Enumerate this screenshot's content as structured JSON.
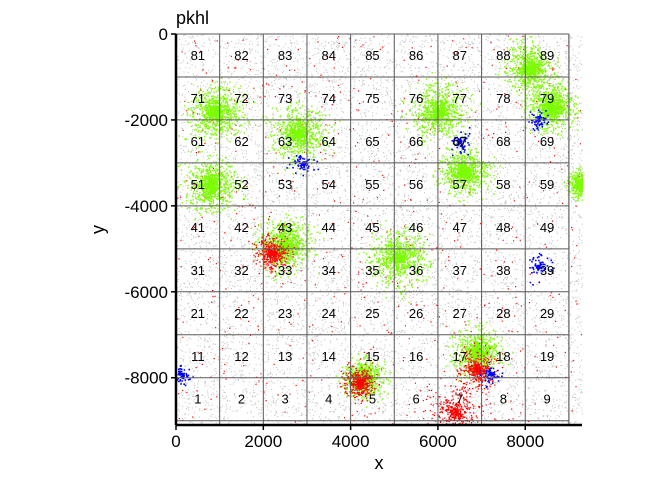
{
  "chart_data": {
    "type": "scatter",
    "title": "pkhl",
    "xlabel": "x",
    "ylabel": "y",
    "xlim": [
      0,
      9300
    ],
    "ylim": [
      -9100,
      0
    ],
    "x_ticks": [
      0,
      2000,
      4000,
      6000,
      8000
    ],
    "x_tick_labels": [
      "0",
      "2000",
      "4000",
      "6000",
      "8000"
    ],
    "y_ticks": [
      0,
      -2000,
      -4000,
      -6000,
      -8000
    ],
    "y_tick_labels": [
      "0",
      "-2000",
      "-4000",
      "-6000",
      "-8000"
    ],
    "grid": {
      "x_edges": [
        0,
        1000,
        2000,
        3000,
        4000,
        5000,
        6000,
        7000,
        8000,
        9000
      ],
      "y_edges": [
        0,
        -1000,
        -2000,
        -3000,
        -4000,
        -5000,
        -6000,
        -7000,
        -8000,
        -9000
      ],
      "labels": [
        [
          "81",
          "82",
          "83",
          "84",
          "85",
          "86",
          "87",
          "88",
          "89"
        ],
        [
          "71",
          "72",
          "73",
          "74",
          "75",
          "76",
          "77",
          "78",
          "79"
        ],
        [
          "61",
          "62",
          "63",
          "64",
          "65",
          "66",
          "67",
          "68",
          "69"
        ],
        [
          "51",
          "52",
          "53",
          "54",
          "55",
          "56",
          "57",
          "58",
          "59"
        ],
        [
          "41",
          "42",
          "43",
          "44",
          "45",
          "46",
          "47",
          "48",
          "49"
        ],
        [
          "31",
          "32",
          "33",
          "34",
          "35",
          "36",
          "37",
          "38",
          "39"
        ],
        [
          "21",
          "22",
          "23",
          "24",
          "25",
          "26",
          "27",
          "28",
          "29"
        ],
        [
          "11",
          "12",
          "13",
          "14",
          "15",
          "16",
          "17",
          "18",
          "19"
        ],
        [
          "1",
          "2",
          "3",
          "4",
          "5",
          "6",
          "7",
          "8",
          "9"
        ]
      ]
    },
    "point_classes": [
      {
        "color": "#bebebe"
      },
      {
        "color": "#7cfc00"
      },
      {
        "color": "#ff0000"
      },
      {
        "color": "#0000ff"
      }
    ],
    "green_clusters": [
      {
        "x": 900,
        "y": -1800,
        "r": 650
      },
      {
        "x": 2800,
        "y": -2300,
        "r": 650
      },
      {
        "x": 6000,
        "y": -1800,
        "r": 650
      },
      {
        "x": 6600,
        "y": -3200,
        "r": 550
      },
      {
        "x": 800,
        "y": -3500,
        "r": 600
      },
      {
        "x": 2500,
        "y": -4900,
        "r": 650
      },
      {
        "x": 5100,
        "y": -5200,
        "r": 700
      },
      {
        "x": 8100,
        "y": -800,
        "r": 600
      },
      {
        "x": 8600,
        "y": -1700,
        "r": 550
      },
      {
        "x": 6900,
        "y": -7400,
        "r": 550
      },
      {
        "x": 4300,
        "y": -8000,
        "r": 450
      },
      {
        "x": 9300,
        "y": -3500,
        "r": 300
      }
    ],
    "red_regions": [
      {
        "x": 6400,
        "y": -8800,
        "r": 700
      },
      {
        "x": 6900,
        "y": -7800,
        "r": 450
      },
      {
        "x": 4200,
        "y": -8100,
        "r": 380
      },
      {
        "x": 2200,
        "y": -5100,
        "r": 400
      }
    ],
    "blue_regions": [
      {
        "x": 6500,
        "y": -2500,
        "r": 300
      },
      {
        "x": 2900,
        "y": -3000,
        "r": 300
      },
      {
        "x": 8300,
        "y": -5400,
        "r": 300
      },
      {
        "x": 8300,
        "y": -2000,
        "r": 250
      },
      {
        "x": 100,
        "y": -7900,
        "r": 250
      },
      {
        "x": 7200,
        "y": -7900,
        "r": 250
      }
    ]
  }
}
